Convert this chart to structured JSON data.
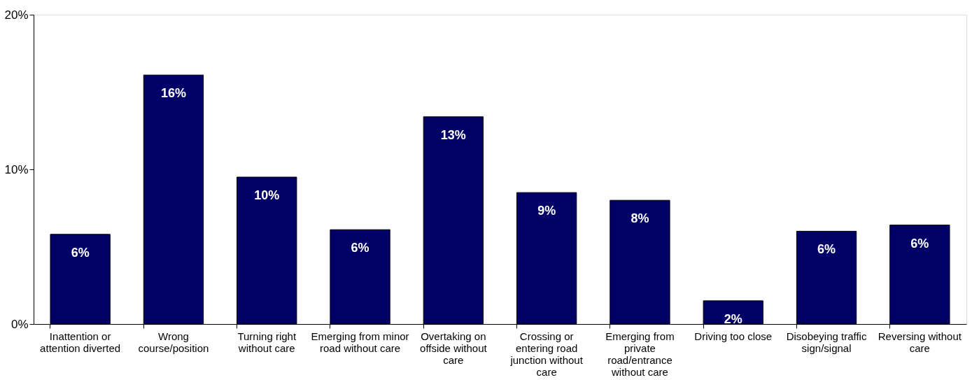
{
  "chart_data": {
    "type": "bar",
    "categories": [
      "Inattention or attention diverted",
      "Wrong course/position",
      "Turning right without care",
      "Emerging from minor road without care",
      "Overtaking on offside without care",
      "Crossing or entering road junction without care",
      "Emerging from private road/entrance without care",
      "Driving too close",
      "Disobeying traffic sign/signal",
      "Reversing without care"
    ],
    "values": [
      5.8,
      16.1,
      9.5,
      6.1,
      13.4,
      8.5,
      8.0,
      1.5,
      6.0,
      6.4
    ],
    "value_labels": [
      "6%",
      "16%",
      "10%",
      "6%",
      "13%",
      "9%",
      "8%",
      "2%",
      "6%",
      "6%"
    ],
    "color": "#000066",
    "ylim": [
      0,
      20
    ],
    "yticks": [
      {
        "value": 0,
        "label": "0%"
      },
      {
        "value": 10,
        "label": "10%"
      },
      {
        "value": 20,
        "label": "20%"
      }
    ],
    "grid": false
  }
}
